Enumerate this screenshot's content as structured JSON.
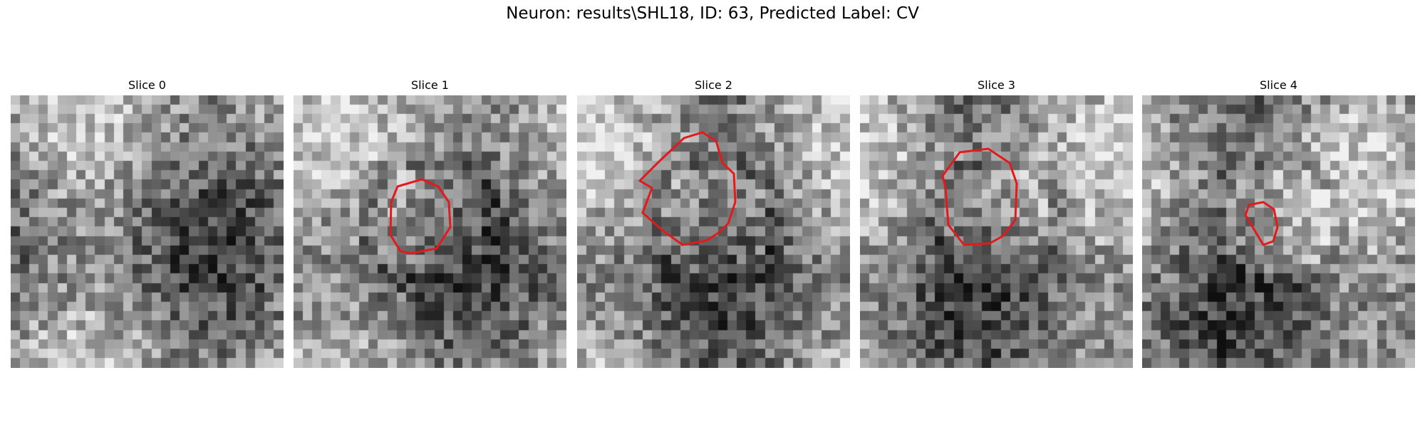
{
  "figure": {
    "title": "Neuron: results\\SHL18, ID: 63, Predicted Label: CV"
  },
  "panels": [
    {
      "title": "Slice 0",
      "has_outline": false
    },
    {
      "title": "Slice 1",
      "has_outline": true
    },
    {
      "title": "Slice 2",
      "has_outline": true
    },
    {
      "title": "Slice 3",
      "has_outline": true
    },
    {
      "title": "Slice 4",
      "has_outline": true
    }
  ],
  "colors": {
    "outline": "#e31a1c",
    "background": "#ffffff"
  }
}
